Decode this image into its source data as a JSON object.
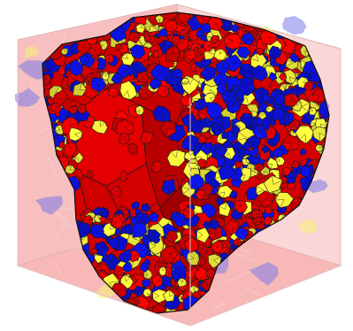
{
  "figure": {
    "kind": "voronoi-grain-structure-in-cube",
    "colors": {
      "red": "#e00000",
      "blue": "#0a10d8",
      "yellow": "#f2ee3a",
      "box_face": "#f08a8a",
      "box_floor": "#f5a0a0",
      "box_edge": "#e2b4b4",
      "cell_edge": "#1a1a1a"
    }
  }
}
